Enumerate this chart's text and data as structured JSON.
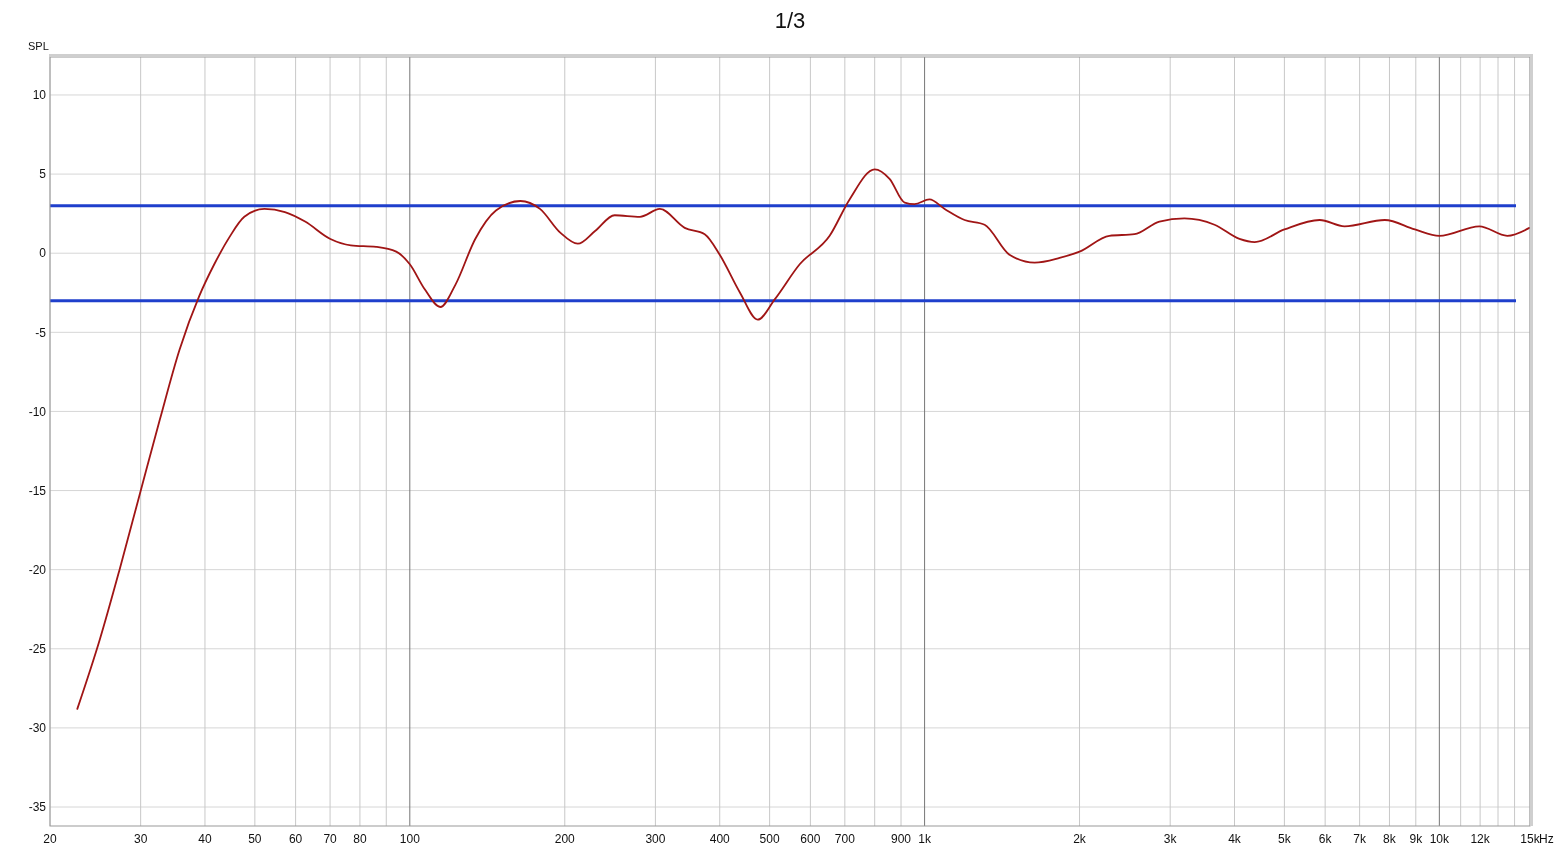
{
  "chart_data": {
    "type": "line",
    "title": "1/3",
    "ylabel": "SPL",
    "xlabel": "Hz",
    "log": "x",
    "grid": true,
    "line_style": "solid",
    "xlim": [
      20,
      15000
    ],
    "ylim": [
      -36.2,
      12.4
    ],
    "xticks": [
      20,
      30,
      40,
      50,
      60,
      70,
      80,
      {
        "value": 90,
        "label": null
      },
      100,
      200,
      300,
      400,
      500,
      600,
      700,
      {
        "value": 800,
        "label": null
      },
      900,
      {
        "value": 1000,
        "label": "1k"
      },
      {
        "value": 2000,
        "label": "2k"
      },
      {
        "value": 3000,
        "label": "3k"
      },
      {
        "value": 4000,
        "label": "4k"
      },
      {
        "value": 5000,
        "label": "5k"
      },
      {
        "value": 6000,
        "label": "6k"
      },
      {
        "value": 7000,
        "label": "7k"
      },
      {
        "value": 8000,
        "label": "8k"
      },
      {
        "value": 9000,
        "label": "9k"
      },
      {
        "value": 10000,
        "label": "10k"
      },
      {
        "value": 11000,
        "label": null
      },
      {
        "value": 12000,
        "label": "12k"
      },
      {
        "value": 13000,
        "label": null
      },
      {
        "value": 14000,
        "label": null
      },
      {
        "value": 15000,
        "label": "15k"
      }
    ],
    "yticks": [
      10,
      5,
      0,
      -5,
      -10,
      -15,
      -20,
      -25,
      -30,
      -35
    ],
    "ref_lines": [
      {
        "axis": "y",
        "value": 3,
        "color": "#1f3fcc"
      },
      {
        "axis": "y",
        "value": -3,
        "color": "#1f3fcc"
      }
    ],
    "series": [
      {
        "color": "#a01515",
        "x": [
          22.6,
          25,
          27.3,
          29.9,
          32.7,
          35.7,
          39,
          41.7,
          44.6,
          47.7,
          52.2,
          57.2,
          62.6,
          70.1,
          76.8,
          86,
          94.1,
          100,
          107,
          114.6,
          122.6,
          134,
          147,
          164,
          179,
          196,
          212,
          229,
          250,
          280,
          306,
          342,
          374,
          400,
          438,
          474,
          512,
          572,
          654,
          715,
          800,
          855,
          915,
          956,
          1022,
          1094,
          1196,
          1308,
          1462,
          1636,
          1829,
          2000,
          2285,
          2557,
          2859,
          3197,
          3658,
          4090,
          4378,
          5002,
          5854,
          6544,
          7834,
          8963,
          10000,
          11960,
          13550,
          14960
        ],
        "values": [
          -28.8,
          -24.4,
          -20,
          -15.2,
          -10.5,
          -6.1,
          -2.7,
          -0.7,
          1,
          2.3,
          2.8,
          2.6,
          2,
          0.9,
          0.5,
          0.4,
          0.1,
          -0.7,
          -2.3,
          -3.4,
          -2,
          0.9,
          2.7,
          3.3,
          2.8,
          1.3,
          0.6,
          1.4,
          2.4,
          2.3,
          2.8,
          1.6,
          1.2,
          -0.1,
          -2.5,
          -4.2,
          -2.9,
          -0.7,
          1.1,
          3.4,
          5.3,
          4.7,
          3.2,
          3.1,
          3.4,
          2.8,
          2.1,
          1.8,
          -0.1,
          -0.6,
          -0.3,
          0.1,
          1.1,
          1.2,
          2,
          2.2,
          1.8,
          0.9,
          0.7,
          1.5,
          2.1,
          1.7,
          2.1,
          1.5,
          1.1,
          1.7,
          1.1,
          1.6
        ]
      }
    ]
  }
}
